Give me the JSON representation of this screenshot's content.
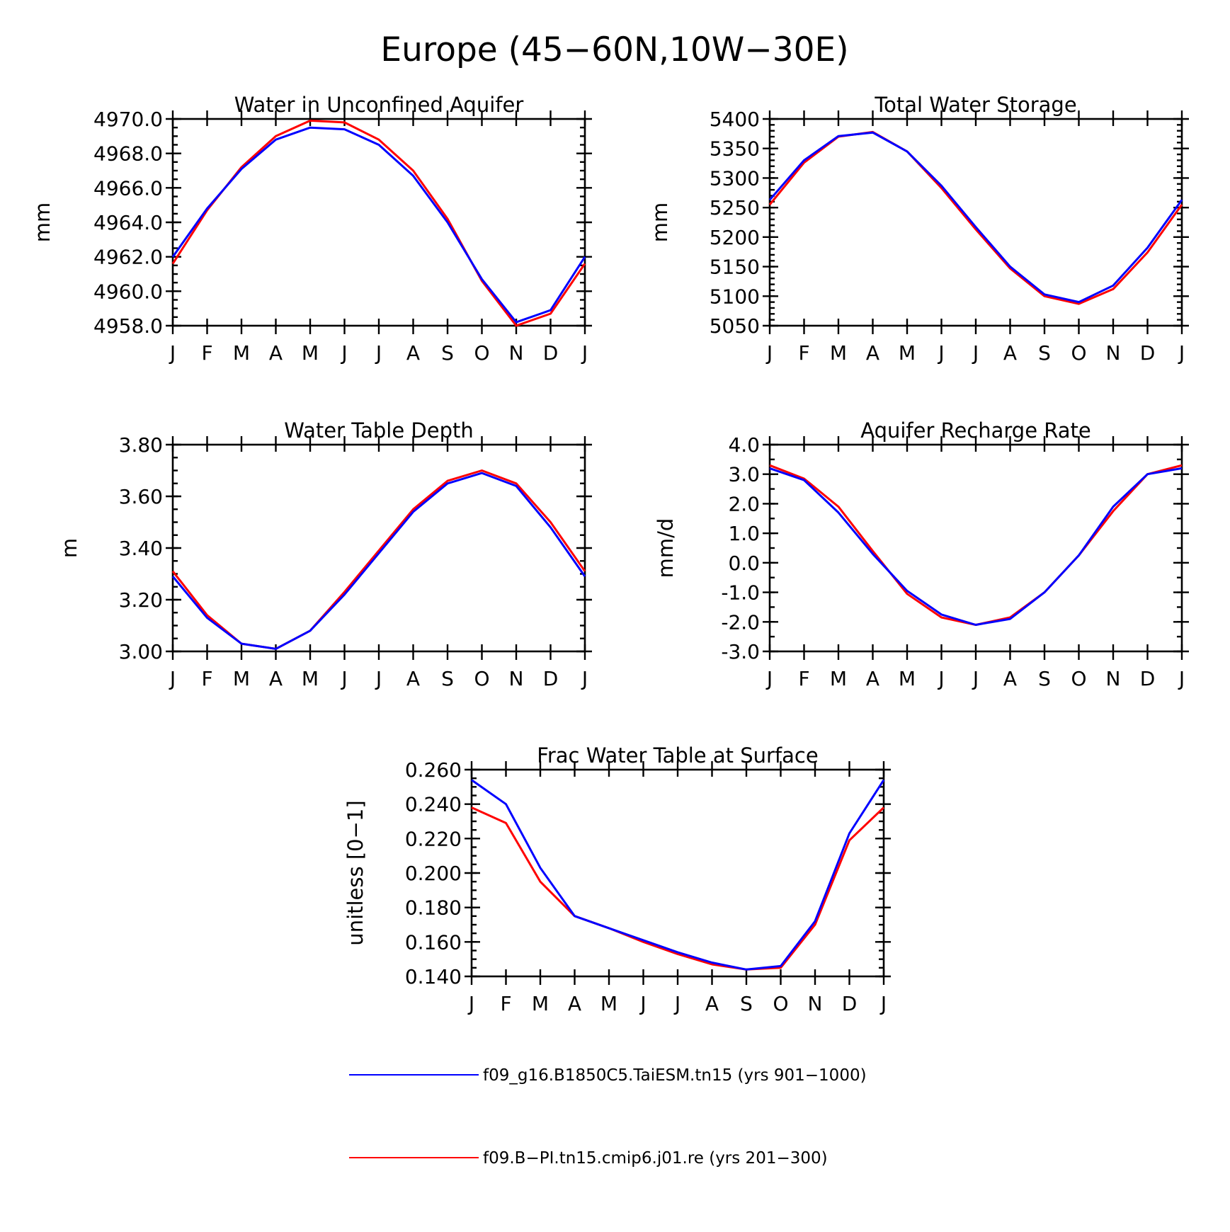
{
  "figure": {
    "title": "Europe (45−60N,10W−30E)"
  },
  "x_tick_labels": [
    "J",
    "F",
    "M",
    "A",
    "M",
    "J",
    "J",
    "A",
    "S",
    "O",
    "N",
    "D",
    "J"
  ],
  "colors": {
    "series_0": "#0000ff",
    "series_1": "#ff0000"
  },
  "legend": {
    "entries": [
      {
        "label": "f09_g16.B1850C5.TaiESM.tn15 (yrs 901−1000)",
        "color": "#0000ff"
      },
      {
        "label": "f09.B−PI.tn15.cmip6.j01.re (yrs 201−300)",
        "color": "#ff0000"
      }
    ]
  },
  "chart_data": [
    {
      "type": "line",
      "title": "Water in Unconfined Aquifer",
      "ylabel": "mm",
      "xlabel": "",
      "ylim": [
        4958.0,
        4970.0
      ],
      "yticks": [
        4958.0,
        4960.0,
        4962.0,
        4964.0,
        4966.0,
        4968.0,
        4970.0
      ],
      "ytick_labels": [
        "4958.0",
        "4960.0",
        "4962.0",
        "4964.0",
        "4966.0",
        "4968.0",
        "4970.0"
      ],
      "minor_ytick_step": 0.5,
      "xlim": [
        0,
        12
      ],
      "x": [
        0,
        1,
        2,
        3,
        4,
        5,
        6,
        7,
        8,
        9,
        10,
        11,
        12
      ],
      "series": [
        {
          "values": [
            4962.0,
            4964.8,
            4967.1,
            4968.8,
            4969.5,
            4969.4,
            4968.5,
            4966.7,
            4964.0,
            4960.7,
            4958.2,
            4958.9,
            4962.0
          ]
        },
        {
          "values": [
            4961.6,
            4964.7,
            4967.2,
            4969.0,
            4969.9,
            4969.8,
            4968.8,
            4967.0,
            4964.2,
            4960.6,
            4958.0,
            4958.7,
            4961.6
          ]
        }
      ]
    },
    {
      "type": "line",
      "title": "Total Water Storage",
      "ylabel": "mm",
      "xlabel": "",
      "ylim": [
        5050,
        5400
      ],
      "yticks": [
        5050,
        5100,
        5150,
        5200,
        5250,
        5300,
        5350,
        5400
      ],
      "ytick_labels": [
        "5050",
        "5100",
        "5150",
        "5200",
        "5250",
        "5300",
        "5350",
        "5400"
      ],
      "minor_ytick_step": 10,
      "xlim": [
        0,
        12
      ],
      "x": [
        0,
        1,
        2,
        3,
        4,
        5,
        6,
        7,
        8,
        9,
        10,
        11,
        12
      ],
      "series": [
        {
          "values": [
            5263,
            5330,
            5371,
            5377,
            5345,
            5287,
            5217,
            5150,
            5103,
            5090,
            5118,
            5182,
            5263
          ]
        },
        {
          "values": [
            5255,
            5326,
            5370,
            5378,
            5345,
            5283,
            5213,
            5147,
            5100,
            5087,
            5112,
            5174,
            5255
          ]
        }
      ]
    },
    {
      "type": "line",
      "title": "Water Table Depth",
      "ylabel": "m",
      "xlabel": "",
      "ylim": [
        3.0,
        3.8
      ],
      "yticks": [
        3.0,
        3.2,
        3.4,
        3.6,
        3.8
      ],
      "ytick_labels": [
        "3.00",
        "3.20",
        "3.40",
        "3.60",
        "3.80"
      ],
      "minor_ytick_step": 0.05,
      "xlim": [
        0,
        12
      ],
      "x": [
        0,
        1,
        2,
        3,
        4,
        5,
        6,
        7,
        8,
        9,
        10,
        11,
        12
      ],
      "series": [
        {
          "values": [
            3.29,
            3.13,
            3.03,
            3.01,
            3.08,
            3.22,
            3.38,
            3.54,
            3.65,
            3.69,
            3.64,
            3.48,
            3.29
          ]
        },
        {
          "values": [
            3.31,
            3.14,
            3.03,
            3.01,
            3.08,
            3.23,
            3.39,
            3.55,
            3.66,
            3.7,
            3.65,
            3.5,
            3.31
          ]
        }
      ]
    },
    {
      "type": "line",
      "title": "Aquifer Recharge Rate",
      "ylabel": "mm/d",
      "xlabel": "",
      "ylim": [
        -3.0,
        4.0
      ],
      "yticks": [
        -3.0,
        -2.0,
        -1.0,
        0.0,
        1.0,
        2.0,
        3.0,
        4.0
      ],
      "ytick_labels": [
        "-3.0",
        "-2.0",
        "-1.0",
        "0.0",
        "1.0",
        "2.0",
        "3.0",
        "4.0"
      ],
      "minor_ytick_step": 0.5,
      "xlim": [
        0,
        12
      ],
      "x": [
        0,
        1,
        2,
        3,
        4,
        5,
        6,
        7,
        8,
        9,
        10,
        11,
        12
      ],
      "series": [
        {
          "values": [
            3.2,
            2.8,
            1.7,
            0.3,
            -0.95,
            -1.75,
            -2.1,
            -1.9,
            -1.0,
            0.25,
            1.9,
            3.0,
            3.2
          ]
        },
        {
          "values": [
            3.3,
            2.85,
            1.9,
            0.4,
            -1.05,
            -1.85,
            -2.1,
            -1.85,
            -1.0,
            0.25,
            1.75,
            3.0,
            3.3
          ]
        }
      ]
    },
    {
      "type": "line",
      "title": "Frac Water Table at Surface",
      "ylabel": "unitless [0−1]",
      "xlabel": "",
      "ylim": [
        0.14,
        0.26
      ],
      "yticks": [
        0.14,
        0.16,
        0.18,
        0.2,
        0.22,
        0.24,
        0.26
      ],
      "ytick_labels": [
        "0.140",
        "0.160",
        "0.180",
        "0.200",
        "0.220",
        "0.240",
        "0.260"
      ],
      "minor_ytick_step": 0.005,
      "xlim": [
        0,
        12
      ],
      "x": [
        0,
        1,
        2,
        3,
        4,
        5,
        6,
        7,
        8,
        9,
        10,
        11,
        12
      ],
      "series": [
        {
          "values": [
            0.254,
            0.24,
            0.203,
            0.175,
            0.168,
            0.161,
            0.154,
            0.148,
            0.144,
            0.146,
            0.172,
            0.223,
            0.254
          ]
        },
        {
          "values": [
            0.238,
            0.229,
            0.195,
            0.175,
            0.168,
            0.16,
            0.153,
            0.147,
            0.144,
            0.145,
            0.17,
            0.219,
            0.238
          ]
        }
      ]
    }
  ]
}
